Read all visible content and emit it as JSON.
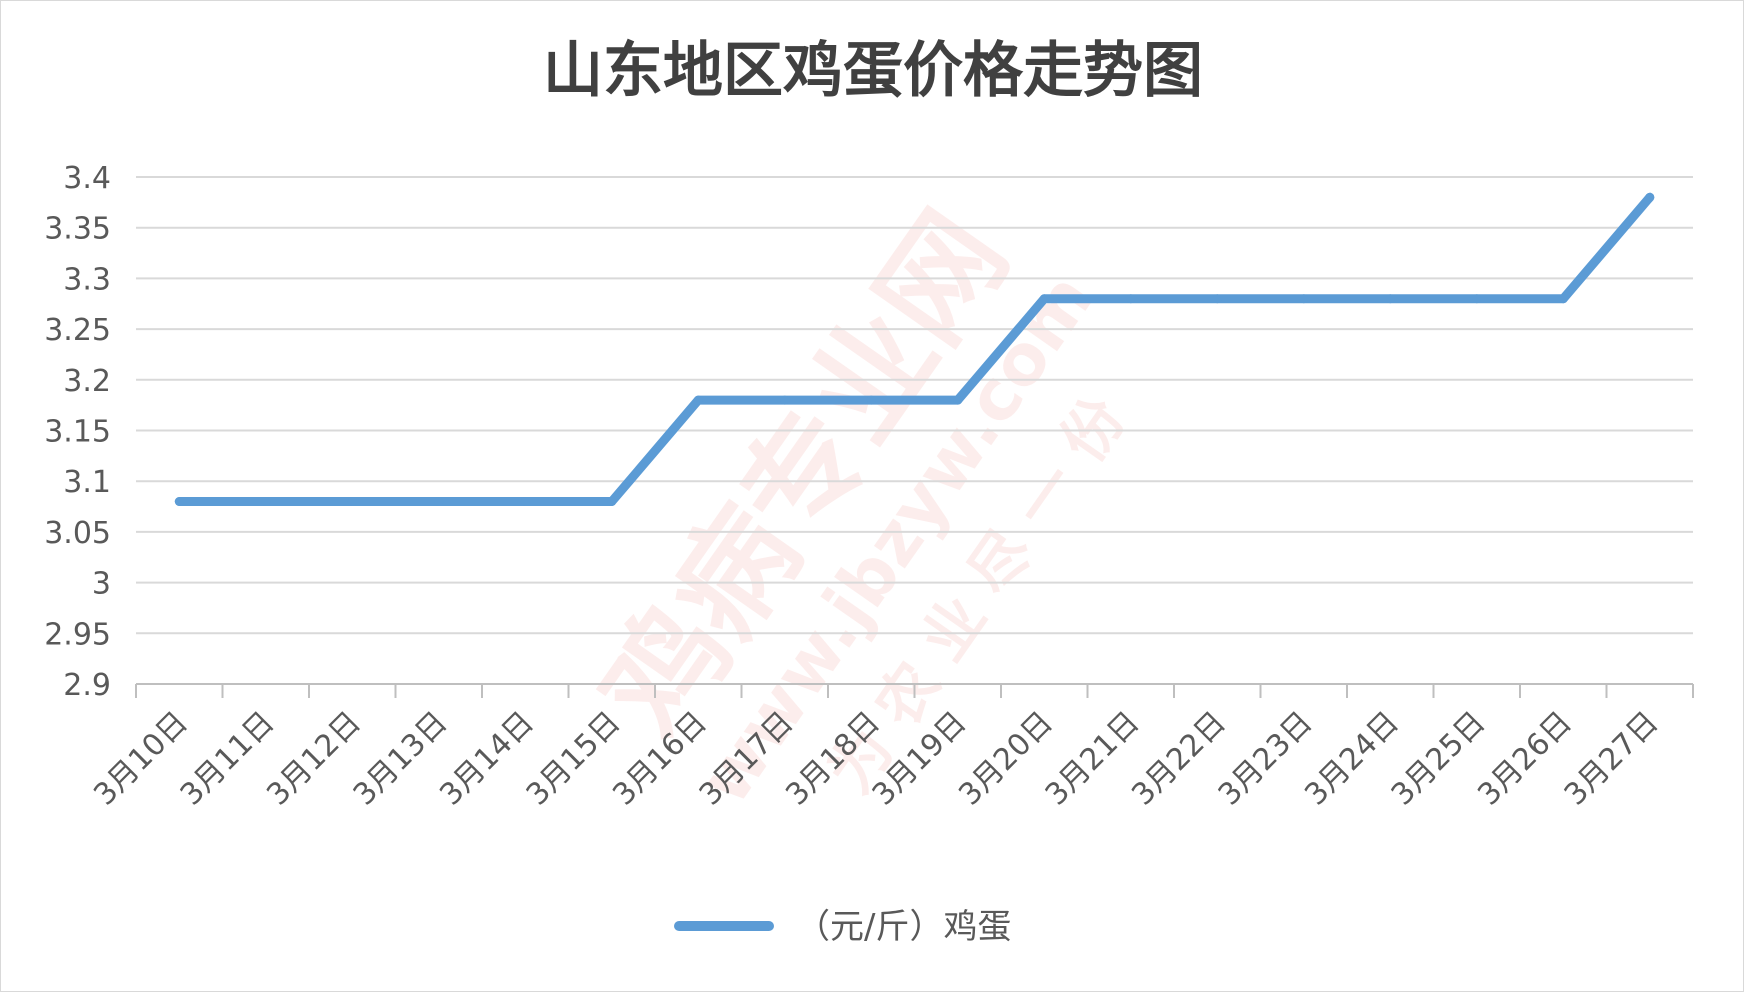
{
  "chart_data": {
    "type": "line",
    "title": "山东地区鸡蛋价格走势图",
    "categories": [
      "3月10日",
      "3月11日",
      "3月12日",
      "3月13日",
      "3月14日",
      "3月15日",
      "3月16日",
      "3月17日",
      "3月18日",
      "3月19日",
      "3月20日",
      "3月21日",
      "3月22日",
      "3月23日",
      "3月24日",
      "3月25日",
      "3月26日",
      "3月27日"
    ],
    "series": [
      {
        "name": "（元/斤）鸡蛋",
        "values": [
          3.08,
          3.08,
          3.08,
          3.08,
          3.08,
          3.08,
          3.18,
          3.18,
          3.18,
          3.18,
          3.28,
          3.28,
          3.28,
          3.28,
          3.28,
          3.28,
          3.28,
          3.38
        ],
        "color": "#5b9bd5"
      }
    ],
    "ylim": [
      2.9,
      3.4
    ],
    "yticks": [
      "2.9",
      "2.95",
      "3",
      "3.05",
      "3.1",
      "3.15",
      "3.2",
      "3.25",
      "3.3",
      "3.35",
      "3.4"
    ],
    "xlabel": "",
    "ylabel": "",
    "grid": true,
    "legend_position": "bottom"
  },
  "colors": {
    "gridline": "#d9d9d9",
    "axis": "#bfbfbf",
    "text": "#595959",
    "title": "#404040"
  },
  "watermark": {
    "line1": "鸡病专业网",
    "line2": "www.jbzyw.com",
    "line3": "为 农 业 尽 一 份"
  }
}
